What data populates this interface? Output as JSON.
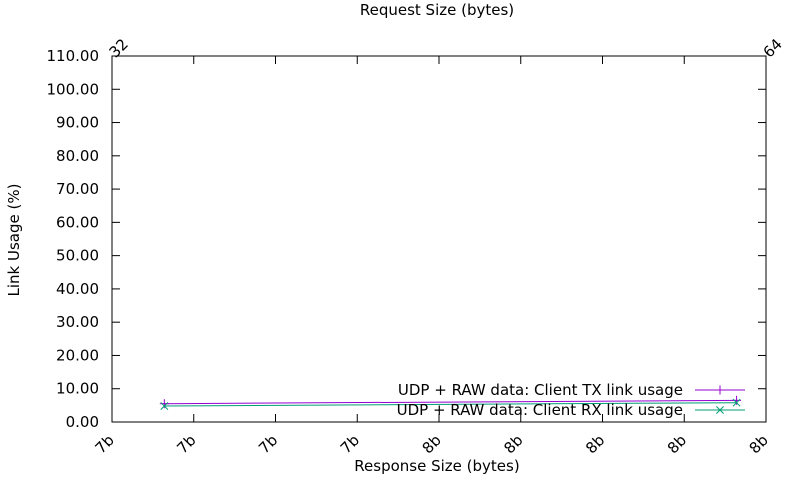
{
  "chart_data": {
    "type": "line",
    "title": "",
    "xlabel": "Response Size (bytes)",
    "x2label": "Request Size (bytes)",
    "ylabel": "Link Usage (%)",
    "ylim": [
      0,
      110
    ],
    "y_ticks": [
      "0.00",
      "10.00",
      "20.00",
      "30.00",
      "40.00",
      "50.00",
      "60.00",
      "70.00",
      "80.00",
      "90.00",
      "100.00",
      "110.00"
    ],
    "x_tick_labels": [
      "7b",
      "7b",
      "7b",
      "7b",
      "8b",
      "8b",
      "8b",
      "8b",
      "8b"
    ],
    "x2_tick_labels": [
      "32",
      "64"
    ],
    "grid": false,
    "legend_position": "bottom-right",
    "series": [
      {
        "name": "UDP + RAW data: Client TX link usage",
        "color": "#9400d3",
        "marker": "plus",
        "x": [
          0.08,
          0.955
        ],
        "values": [
          5.5,
          6.5
        ]
      },
      {
        "name": "UDP + RAW data: Client RX link usage",
        "color": "#009e73",
        "marker": "cross",
        "x": [
          0.08,
          0.955
        ],
        "values": [
          4.8,
          5.8
        ]
      }
    ]
  }
}
